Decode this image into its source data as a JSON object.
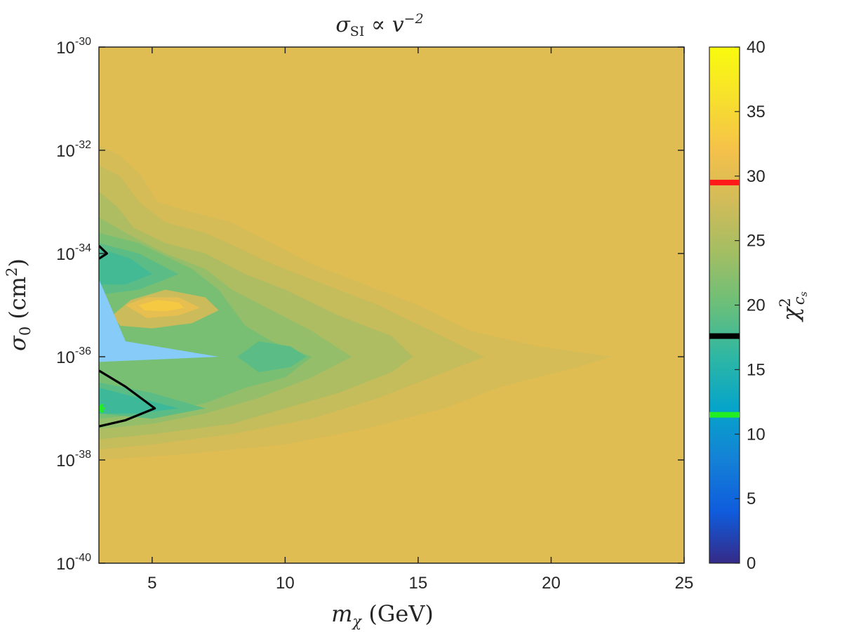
{
  "chart_data": {
    "type": "heatmap",
    "title": "σ_SI ∝ v⁻²",
    "title_parts": {
      "sigma": "σ",
      "sub": "SI",
      "prop": " ∝ ",
      "v": "v",
      "sup": "−2"
    },
    "xlabel": "m_χ (GeV)",
    "xlabel_parts": {
      "m": "m",
      "sub": "χ",
      "rest": " (GeV)"
    },
    "ylabel": "σ_0 (cm²)",
    "ylabel_parts": {
      "sigma": "σ",
      "sub": "0",
      "rest": " (cm",
      "sup": "2",
      "close": ")"
    },
    "colorbar_label": "χ²_cs",
    "colorbar_label_parts": {
      "chi": "χ",
      "sup": "2",
      "sub": "c",
      "subsub": "s"
    },
    "x_scale": "linear",
    "y_scale": "log",
    "xlim": [
      3,
      25
    ],
    "ylim_log10": [
      -40,
      -30
    ],
    "xticks": [
      5,
      10,
      15,
      20,
      25
    ],
    "xtick_labels": [
      "5",
      "10",
      "15",
      "20",
      "25"
    ],
    "yticks_log10": [
      -40,
      -38,
      -36,
      -34,
      -32,
      -30
    ],
    "ytick_labels": [
      {
        "base": "10",
        "exp": "-40"
      },
      {
        "base": "10",
        "exp": "-38"
      },
      {
        "base": "10",
        "exp": "-36"
      },
      {
        "base": "10",
        "exp": "-34"
      },
      {
        "base": "10",
        "exp": "-32"
      },
      {
        "base": "10",
        "exp": "-30"
      }
    ],
    "colorbar": {
      "range": [
        0,
        40
      ],
      "ticks": [
        0,
        5,
        10,
        15,
        20,
        25,
        30,
        35,
        40
      ],
      "tick_labels": [
        "0",
        "5",
        "10",
        "15",
        "20",
        "25",
        "30",
        "35",
        "40"
      ],
      "colormap": "parula",
      "markers": [
        {
          "value": 29.5,
          "color": "#ff1a1a"
        },
        {
          "value": 17.6,
          "color": "#000000"
        },
        {
          "value": 11.5,
          "color": "#22ee22"
        }
      ]
    },
    "background_level": 29.5,
    "contour_levels": [
      {
        "level": 28.5,
        "points": [
          [
            3,
            -31.9
          ],
          [
            3.8,
            -32.1
          ],
          [
            4.6,
            -32.5
          ],
          [
            5.2,
            -33.0
          ],
          [
            6.5,
            -33.2
          ],
          [
            8,
            -33.4
          ],
          [
            9.5,
            -33.8
          ],
          [
            11,
            -34.2
          ],
          [
            13,
            -34.6
          ],
          [
            15,
            -35.0
          ],
          [
            17,
            -35.5
          ],
          [
            19.5,
            -35.8
          ],
          [
            22.3,
            -36.0
          ],
          [
            21,
            -36.2
          ],
          [
            18,
            -36.6
          ],
          [
            16,
            -37.0
          ],
          [
            13,
            -37.4
          ],
          [
            10,
            -37.7
          ],
          [
            6,
            -37.9
          ],
          [
            3,
            -38.0
          ]
        ]
      },
      {
        "level": 27,
        "points": [
          [
            3,
            -32.3
          ],
          [
            3.8,
            -32.5
          ],
          [
            4.5,
            -33.0
          ],
          [
            5.5,
            -33.4
          ],
          [
            7,
            -33.6
          ],
          [
            8.3,
            -33.9
          ],
          [
            9.5,
            -34.2
          ],
          [
            11.5,
            -34.6
          ],
          [
            13.5,
            -35.0
          ],
          [
            15.5,
            -35.5
          ],
          [
            17.5,
            -36.0
          ],
          [
            15.5,
            -36.4
          ],
          [
            13.5,
            -36.8
          ],
          [
            11,
            -37.2
          ],
          [
            8,
            -37.5
          ],
          [
            5,
            -37.7
          ],
          [
            3,
            -37.8
          ]
        ]
      },
      {
        "level": 25,
        "points": [
          [
            3,
            -32.8
          ],
          [
            3.7,
            -33.1
          ],
          [
            4.3,
            -33.5
          ],
          [
            5.5,
            -33.8
          ],
          [
            7,
            -34.0
          ],
          [
            8.5,
            -34.4
          ],
          [
            10,
            -34.7
          ],
          [
            12,
            -35.2
          ],
          [
            14,
            -35.6
          ],
          [
            14.8,
            -36.0
          ],
          [
            14,
            -36.3
          ],
          [
            12,
            -36.7
          ],
          [
            10,
            -37.0
          ],
          [
            8,
            -37.3
          ],
          [
            5,
            -37.5
          ],
          [
            3,
            -37.6
          ]
        ]
      },
      {
        "level": 23,
        "points": [
          [
            3,
            -33.3
          ],
          [
            4,
            -33.6
          ],
          [
            5.5,
            -34.0
          ],
          [
            7,
            -34.3
          ],
          [
            8,
            -34.7
          ],
          [
            9.5,
            -35.1
          ],
          [
            11,
            -35.5
          ],
          [
            12.5,
            -36.0
          ],
          [
            11,
            -36.4
          ],
          [
            9,
            -36.8
          ],
          [
            7,
            -37.1
          ],
          [
            5,
            -37.3
          ],
          [
            3,
            -37.4
          ]
        ]
      },
      {
        "level": 21,
        "points": [
          [
            3,
            -33.6
          ],
          [
            4.5,
            -33.8
          ],
          [
            6.5,
            -34.3
          ],
          [
            7.5,
            -34.7
          ],
          [
            8.5,
            -35.4
          ],
          [
            9.5,
            -35.7
          ],
          [
            11,
            -36.0
          ],
          [
            10,
            -36.4
          ],
          [
            8.5,
            -36.6
          ],
          [
            7,
            -36.9
          ],
          [
            5,
            -37.1
          ],
          [
            3,
            -37.2
          ]
        ]
      },
      {
        "level": 19,
        "points": [
          [
            3,
            -33.8
          ],
          [
            4.5,
            -34.0
          ],
          [
            6,
            -34.4
          ],
          [
            4.5,
            -34.7
          ],
          [
            3,
            -34.8
          ]
        ]
      },
      {
        "level": 19,
        "points": [
          [
            3,
            -36.5
          ],
          [
            5,
            -36.7
          ],
          [
            7,
            -37.0
          ],
          [
            5,
            -37.2
          ],
          [
            3,
            -37.1
          ]
        ]
      },
      {
        "level": 19,
        "points": [
          [
            8.2,
            -36.0
          ],
          [
            9,
            -35.7
          ],
          [
            10.2,
            -35.8
          ],
          [
            10.8,
            -36.0
          ],
          [
            10.2,
            -36.2
          ],
          [
            9,
            -36.3
          ]
        ]
      },
      {
        "level": 17.5,
        "points": [
          [
            3,
            -33.9
          ],
          [
            4.2,
            -34.1
          ],
          [
            5,
            -34.4
          ],
          [
            4,
            -34.6
          ],
          [
            3,
            -34.6
          ]
        ]
      },
      {
        "level": 17,
        "points": [
          [
            3,
            -36.6
          ],
          [
            4.5,
            -36.8
          ],
          [
            6,
            -37.0
          ],
          [
            4.5,
            -37.1
          ],
          [
            3,
            -37.1
          ]
        ]
      },
      {
        "level": 27.5,
        "points": [
          [
            3.5,
            -35.2
          ],
          [
            4.2,
            -34.9
          ],
          [
            5.5,
            -34.7
          ],
          [
            7,
            -34.85
          ],
          [
            7.5,
            -35.1
          ],
          [
            6.5,
            -35.35
          ],
          [
            5,
            -35.45
          ],
          [
            3.8,
            -35.4
          ]
        ]
      },
      {
        "level": 30.5,
        "points": [
          [
            4,
            -35.0
          ],
          [
            4.8,
            -34.85
          ],
          [
            6,
            -34.85
          ],
          [
            6.8,
            -35.05
          ],
          [
            6,
            -35.2
          ],
          [
            4.8,
            -35.25
          ]
        ]
      },
      {
        "level": 33,
        "points": [
          [
            4.5,
            -35.0
          ],
          [
            5.2,
            -34.9
          ],
          [
            6,
            -34.95
          ],
          [
            6.2,
            -35.05
          ],
          [
            5.5,
            -35.12
          ],
          [
            4.7,
            -35.1
          ]
        ]
      }
    ],
    "excluded_region_color": "#87cbf8",
    "excluded_region": [
      [
        3,
        -34.5
      ],
      [
        4,
        -35.7
      ],
      [
        7.5,
        -36.0
      ],
      [
        3,
        -36.1
      ]
    ],
    "black_contours": [
      [
        [
          3,
          -36.27
        ],
        [
          4,
          -36.58
        ],
        [
          5.1,
          -37.0
        ],
        [
          4,
          -37.23
        ],
        [
          3,
          -37.35
        ]
      ],
      [
        [
          3,
          -33.85
        ],
        [
          3.3,
          -34.0
        ],
        [
          3,
          -34.1
        ]
      ]
    ],
    "best_fit_point": {
      "x": 3.05,
      "y_log10": -37.0,
      "color": "#22ee22"
    }
  }
}
